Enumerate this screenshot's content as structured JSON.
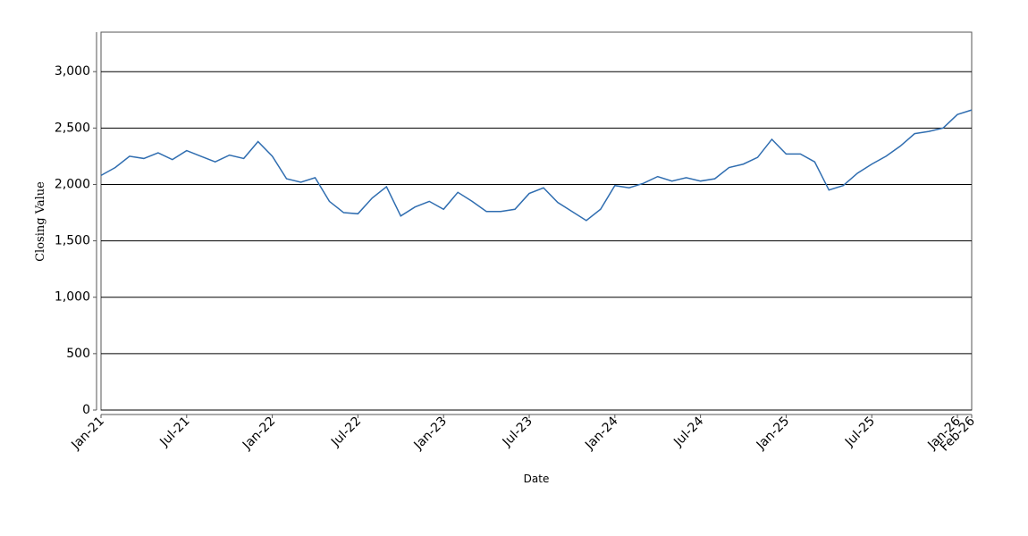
{
  "chart_data": {
    "type": "line",
    "x_label": "Date",
    "y_label": "Closing Value",
    "x": [
      "2021-01",
      "2021-02",
      "2021-03",
      "2021-04",
      "2021-05",
      "2021-06",
      "2021-07",
      "2021-08",
      "2021-09",
      "2021-10",
      "2021-11",
      "2021-12",
      "2022-01",
      "2022-02",
      "2022-03",
      "2022-04",
      "2022-05",
      "2022-06",
      "2022-07",
      "2022-08",
      "2022-09",
      "2022-10",
      "2022-11",
      "2022-12",
      "2023-01",
      "2023-02",
      "2023-03",
      "2023-04",
      "2023-05",
      "2023-06",
      "2023-07",
      "2023-08",
      "2023-09",
      "2023-10",
      "2023-11",
      "2023-12",
      "2024-01",
      "2024-02",
      "2024-03",
      "2024-04",
      "2024-05",
      "2024-06",
      "2024-07",
      "2024-08",
      "2024-09",
      "2024-10",
      "2024-11",
      "2024-12",
      "2025-01",
      "2025-02",
      "2025-03",
      "2025-04",
      "2025-05",
      "2025-06",
      "2025-07",
      "2025-08",
      "2025-09",
      "2025-10",
      "2025-11",
      "2025-12",
      "2026-01",
      "2026-02"
    ],
    "series": [
      {
        "color": "#2f6db0",
        "values": [
          2080,
          2150,
          2250,
          2230,
          2280,
          2220,
          2300,
          2250,
          2200,
          2260,
          2230,
          2380,
          2250,
          2050,
          2020,
          2060,
          1850,
          1750,
          1740,
          1880,
          1980,
          1720,
          1800,
          1850,
          1780,
          1930,
          1850,
          1760,
          1760,
          1780,
          1920,
          1970,
          1840,
          1760,
          1680,
          1780,
          1990,
          1970,
          2010,
          2070,
          2030,
          2060,
          2030,
          2050,
          2150,
          2180,
          2240,
          2400,
          2270,
          2270,
          2200,
          1950,
          1990,
          2100,
          2180,
          2250,
          2340,
          2450,
          2470,
          2500,
          2620,
          2660
        ]
      }
    ],
    "xlim": [
      "2021-01",
      "2026-02"
    ],
    "xticks": [
      {
        "value": "2021-01",
        "label": "Jan-21"
      },
      {
        "value": "2021-07",
        "label": "Jul-21"
      },
      {
        "value": "2022-01",
        "label": "Jan-22"
      },
      {
        "value": "2022-07",
        "label": "Jul-22"
      },
      {
        "value": "2023-01",
        "label": "Jan-23"
      },
      {
        "value": "2023-07",
        "label": "Jul-23"
      },
      {
        "value": "2024-01",
        "label": "Jan-24"
      },
      {
        "value": "2024-07",
        "label": "Jul-24"
      },
      {
        "value": "2025-01",
        "label": "Jan-25"
      },
      {
        "value": "2025-07",
        "label": "Jul-25"
      },
      {
        "value": "2026-01",
        "label": "Jan-26"
      },
      {
        "value": "2026-02",
        "label": "Feb-26"
      }
    ],
    "ylim": [
      0,
      3350
    ],
    "yticks": [
      0,
      500,
      {
        "value": 1000,
        "label": "1,000"
      },
      {
        "value": 1500,
        "label": "1,500"
      },
      {
        "value": 2000,
        "label": "2,000"
      },
      {
        "value": 2500,
        "label": "2,500"
      },
      {
        "value": 3000,
        "label": "3,000"
      }
    ],
    "grid": true
  }
}
